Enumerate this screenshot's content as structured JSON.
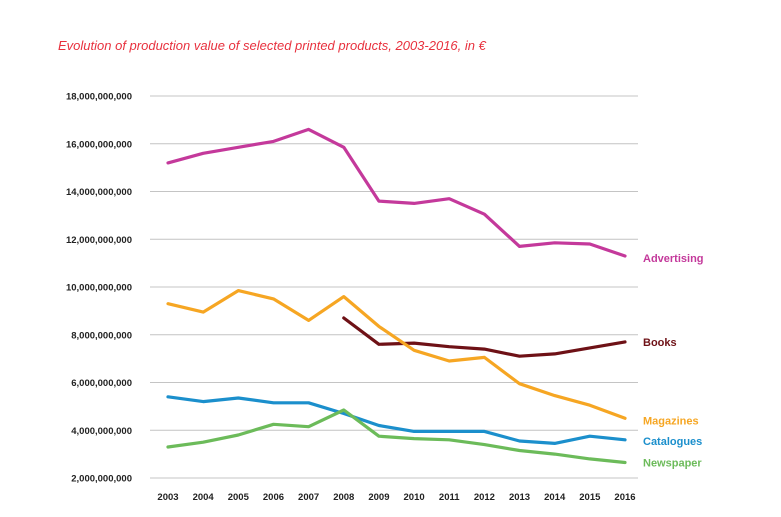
{
  "chart_data": {
    "type": "line",
    "title": "Evolution of production value of selected printed products, 2003-2016, in €",
    "xlabel": "",
    "ylabel": "",
    "x": [
      2003,
      2004,
      2005,
      2006,
      2007,
      2008,
      2009,
      2010,
      2011,
      2012,
      2013,
      2014,
      2015,
      2016
    ],
    "x_tick_labels": [
      "2003",
      "2004",
      "2005",
      "2006",
      "2007",
      "2008",
      "2009",
      "2010",
      "2011",
      "2012",
      "2013",
      "2014",
      "2015",
      "2016"
    ],
    "ylim": [
      2000000000,
      18000000000
    ],
    "y_ticks": [
      2000000000,
      4000000000,
      6000000000,
      8000000000,
      10000000000,
      12000000000,
      14000000000,
      16000000000,
      18000000000
    ],
    "y_tick_labels": [
      "2,000,000,000",
      "4,000,000,000",
      "6,000,000,000",
      "8,000,000,000",
      "10,000,000,000",
      "12,000,000,000",
      "14,000,000,000",
      "16,000,000,000",
      "18,000,000,000"
    ],
    "grid": true,
    "legend": "right-inline-labels",
    "series": [
      {
        "name": "Advertising",
        "color": "#c4399b",
        "values": [
          15200000000,
          15600000000,
          15850000000,
          16100000000,
          16600000000,
          15850000000,
          13600000000,
          13500000000,
          13700000000,
          13050000000,
          11700000000,
          11850000000,
          11800000000,
          11300000000
        ]
      },
      {
        "name": "Books",
        "color": "#6e1116",
        "values": [
          null,
          null,
          null,
          null,
          null,
          8700000000,
          7600000000,
          7650000000,
          7500000000,
          7400000000,
          7100000000,
          7200000000,
          7450000000,
          7700000000
        ]
      },
      {
        "name": "Magazines",
        "color": "#f6a623",
        "values": [
          9300000000,
          8950000000,
          9850000000,
          9500000000,
          8600000000,
          9600000000,
          8350000000,
          7350000000,
          6900000000,
          7050000000,
          5950000000,
          5450000000,
          5050000000,
          4500000000
        ]
      },
      {
        "name": "Catalogues",
        "color": "#1b8fcc",
        "values": [
          5400000000,
          5200000000,
          5350000000,
          5150000000,
          5150000000,
          4700000000,
          4200000000,
          3950000000,
          3950000000,
          3950000000,
          3550000000,
          3450000000,
          3750000000,
          3600000000
        ]
      },
      {
        "name": "Newspaper",
        "color": "#6cbb5a",
        "values": [
          3300000000,
          3500000000,
          3800000000,
          4250000000,
          4150000000,
          4850000000,
          3750000000,
          3650000000,
          3600000000,
          3400000000,
          3150000000,
          3000000000,
          2800000000,
          2650000000
        ]
      }
    ]
  }
}
